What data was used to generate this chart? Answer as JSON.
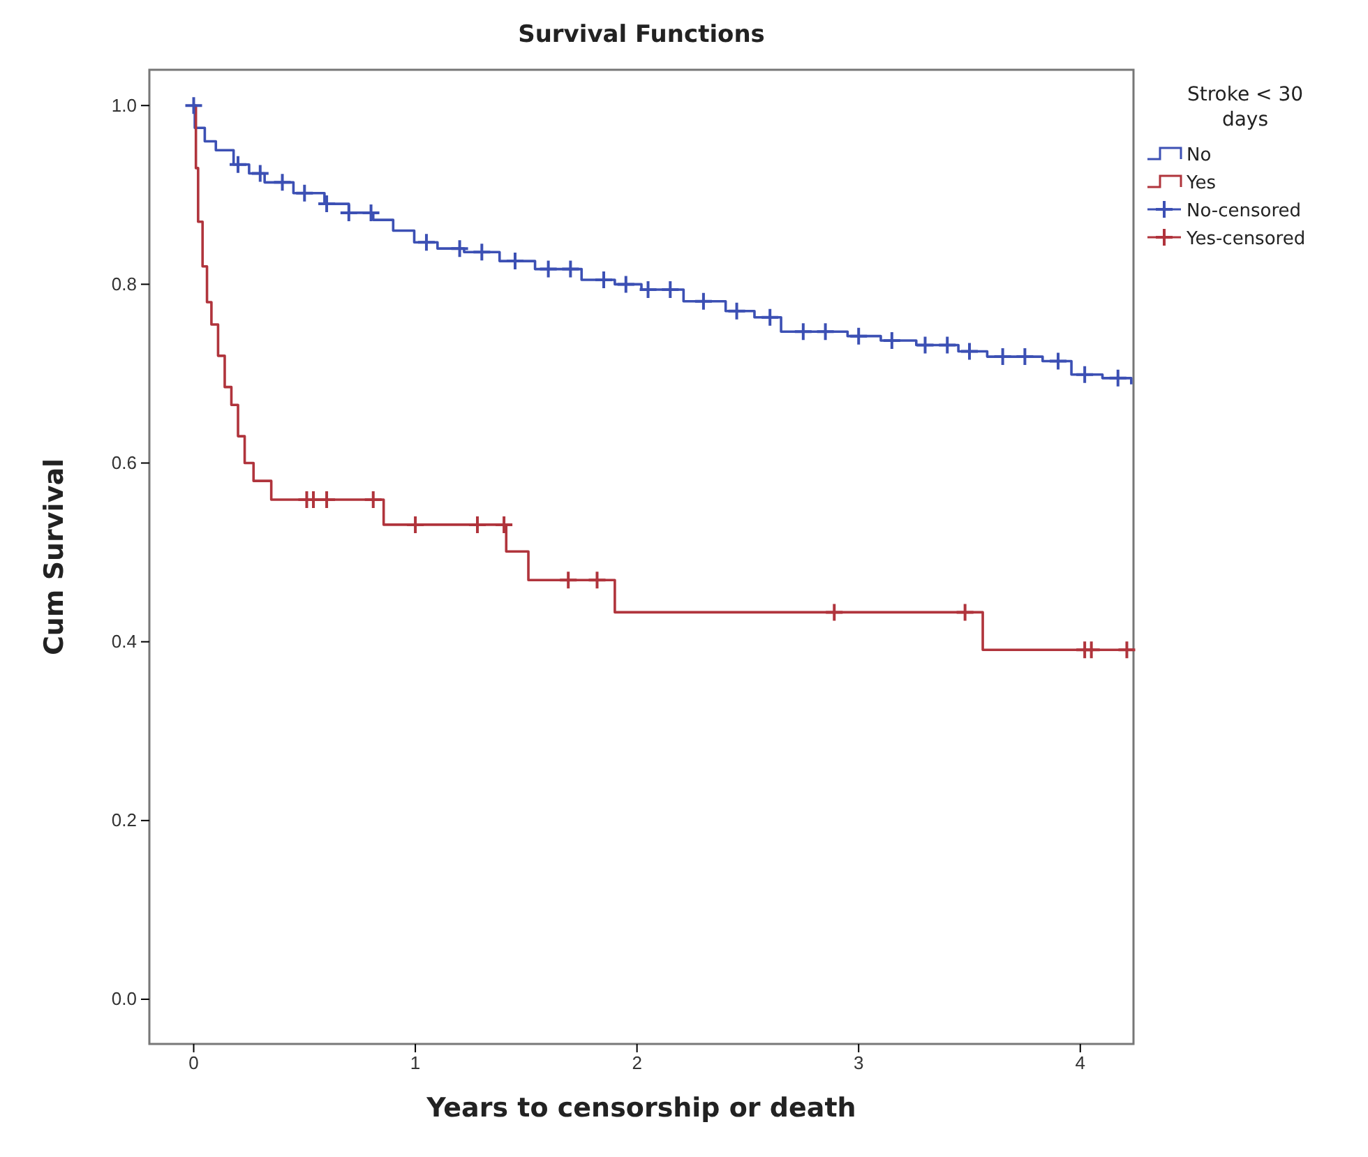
{
  "chart_data": {
    "type": "step",
    "title": "Survival Functions",
    "xlabel": "Years to censorship or death",
    "ylabel": "Cum Survival",
    "legend_title": "Stroke < 30 days",
    "legend": "right",
    "grid": false,
    "xlim": [
      -0.2,
      4.24
    ],
    "ylim": [
      -0.05,
      1.04
    ],
    "xticks": [
      0,
      1,
      2,
      3,
      4
    ],
    "yticks": [
      {
        "value": 0,
        "label": "0.0"
      },
      {
        "value": 0.2,
        "label": "0.2"
      },
      {
        "value": 0.4,
        "label": "0.4"
      },
      {
        "value": 0.6,
        "label": "0.6"
      },
      {
        "value": 0.8,
        "label": "0.8"
      },
      {
        "value": 1,
        "label": "1.0"
      }
    ],
    "series": [
      {
        "name": "No",
        "color": "#3c50b4",
        "x": [
          0,
          0.005,
          0.05,
          0.1,
          0.18,
          0.25,
          0.32,
          0.45,
          0.59,
          0.7,
          0.81,
          0.9,
          0.995,
          1.1,
          1.22,
          1.38,
          1.54,
          1.75,
          1.9,
          2.02,
          2.21,
          2.4,
          2.53,
          2.65,
          2.95,
          3.1,
          3.26,
          3.45,
          3.58,
          3.83,
          3.96,
          4.1,
          4.23
        ],
        "values": [
          1.0,
          0.975,
          0.96,
          0.95,
          0.934,
          0.924,
          0.914,
          0.902,
          0.89,
          0.88,
          0.872,
          0.86,
          0.847,
          0.84,
          0.836,
          0.826,
          0.817,
          0.805,
          0.8,
          0.794,
          0.781,
          0.77,
          0.763,
          0.747,
          0.742,
          0.737,
          0.732,
          0.725,
          0.719,
          0.714,
          0.699,
          0.695,
          0.688
        ]
      },
      {
        "name": "Yes",
        "color": "#b0343c",
        "x": [
          0,
          0.01,
          0.02,
          0.04,
          0.06,
          0.08,
          0.11,
          0.14,
          0.17,
          0.2,
          0.23,
          0.27,
          0.35,
          0.857,
          1.41,
          1.51,
          1.9,
          3.56,
          4.24
        ],
        "values": [
          1.0,
          0.93,
          0.87,
          0.82,
          0.78,
          0.755,
          0.72,
          0.685,
          0.665,
          0.63,
          0.6,
          0.58,
          0.559,
          0.531,
          0.501,
          0.469,
          0.433,
          0.391,
          0.391
        ]
      },
      {
        "name": "No-censored",
        "type": "scatter",
        "marker": "cross",
        "color": "#3c50b4",
        "x": [
          0,
          0.2,
          0.3,
          0.4,
          0.5,
          0.6,
          0.7,
          0.8,
          1.05,
          1.2,
          1.3,
          1.45,
          1.6,
          1.7,
          1.85,
          1.95,
          2.05,
          2.15,
          2.3,
          2.45,
          2.6,
          2.75,
          2.85,
          3.0,
          3.15,
          3.3,
          3.4,
          3.5,
          3.65,
          3.75,
          3.9,
          4.02,
          4.17
        ],
        "values": [
          1.0,
          0.934,
          0.924,
          0.914,
          0.902,
          0.89,
          0.88,
          0.88,
          0.847,
          0.84,
          0.836,
          0.826,
          0.817,
          0.817,
          0.805,
          0.8,
          0.794,
          0.794,
          0.781,
          0.77,
          0.763,
          0.747,
          0.747,
          0.742,
          0.737,
          0.732,
          0.732,
          0.725,
          0.719,
          0.719,
          0.714,
          0.699,
          0.695
        ]
      },
      {
        "name": "Yes-censored",
        "type": "scatter",
        "marker": "cross",
        "color": "#b0343c",
        "x": [
          0.51,
          0.54,
          0.6,
          0.81,
          1.0,
          1.28,
          1.4,
          1.69,
          1.82,
          2.89,
          3.48,
          4.02,
          4.05,
          4.21
        ],
        "values": [
          0.559,
          0.559,
          0.559,
          0.559,
          0.531,
          0.531,
          0.531,
          0.469,
          0.469,
          0.433,
          0.433,
          0.391,
          0.391,
          0.391
        ]
      }
    ]
  }
}
